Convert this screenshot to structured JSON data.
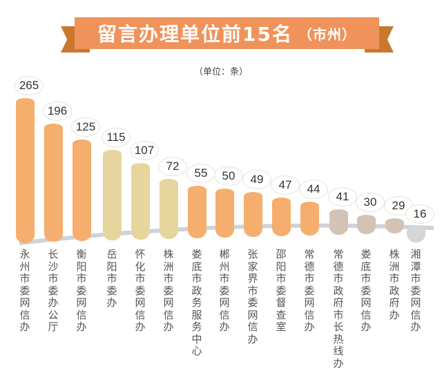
{
  "header": {
    "title": "留言办理单位前15名",
    "subtitle": "（市州）",
    "unit": "（单位：条）"
  },
  "colors": {
    "banner": "#f0935a",
    "ribbon": "#c9782f",
    "orange": "#f5ae6e",
    "khaki": "#e6d59c",
    "taupe": "#d4c3b5",
    "grey": "#d6d6d6"
  },
  "chart_data": {
    "type": "bar",
    "title": "留言办理单位前15名（市州）",
    "ylabel": "单位：条",
    "xlabel": "",
    "categories": [
      "永州市委网信办",
      "长沙市委办公厅",
      "衡阳市委网信办",
      "岳阳市委办",
      "怀化市委网信办",
      "株洲市委网信办",
      "娄底市政务服务中心",
      "郴州市委网信办",
      "张家界市委网信办",
      "邵阳市委督查室",
      "常德市委网信办",
      "常德市政府市长热线办",
      "娄底市委网信办",
      "株洲市政府办",
      "湘潭市委网信办"
    ],
    "values": [
      265,
      196,
      125,
      115,
      107,
      72,
      55,
      50,
      49,
      47,
      44,
      41,
      30,
      29,
      16
    ],
    "bar_colors": [
      "#f5ae6e",
      "#f5ae6e",
      "#f5ae6e",
      "#e6d59c",
      "#e6d59c",
      "#e6d59c",
      "#f5ae6e",
      "#f5ae6e",
      "#f5ae6e",
      "#f5ae6e",
      "#f5ae6e",
      "#d4c3b5",
      "#d4c3b5",
      "#d4c3b5",
      "#d6d6d6"
    ],
    "grid": false,
    "legend": null
  }
}
